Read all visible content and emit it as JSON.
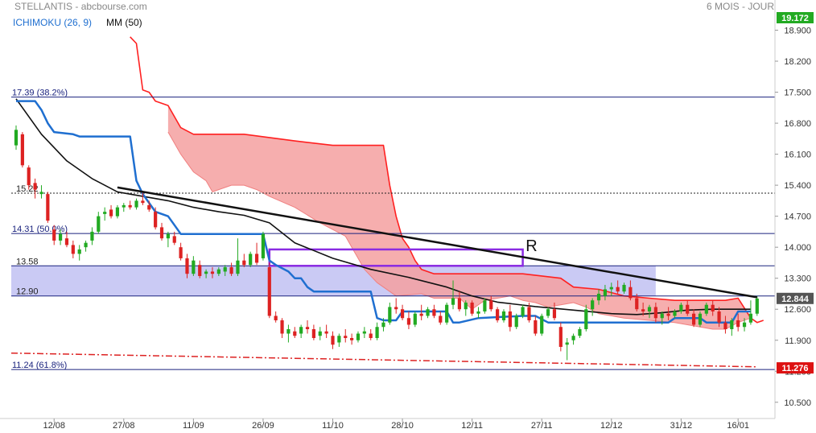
{
  "header": {
    "title": "STELLANTIS - abcbourse.com",
    "period": "6 MOIS - JOUR",
    "indicator1": "ICHIMOKU (26, 9)",
    "indicator2": "MM (50)"
  },
  "colors": {
    "kijun": "#1f6fd0",
    "ma": "#111111",
    "senkou_b": "#ff2020",
    "cloud_bear": "#f4a0a0",
    "cloud_bull": "#c8c0f0",
    "up_candle": "#22aa22",
    "down_candle": "#dd2222",
    "fib_line": "#1a237e",
    "zone_fill": "#b8b8f0",
    "purple_box": "#8a2be2",
    "support_dashdot": "#dd2222",
    "price_tag": "#dd1111",
    "top_tag": "#22aa22",
    "last_tag": "#555555"
  },
  "chart_data": {
    "type": "candlestick",
    "y_axis": {
      "ylim": [
        10.3,
        19.1
      ],
      "ticks": [
        "18.900",
        "18.200",
        "17.500",
        "16.800",
        "16.100",
        "15.400",
        "14.700",
        "14.000",
        "13.300",
        "12.600",
        "11.900",
        "11.200",
        "10.500"
      ],
      "top_tag": "19.172",
      "price_tags": [
        {
          "label": "12.844",
          "value": 12.844,
          "style": "last"
        },
        {
          "label": "11.276",
          "value": 11.276,
          "style": "red"
        }
      ]
    },
    "x_axis": {
      "ticks": [
        {
          "label": "12/08",
          "index": 6
        },
        {
          "label": "27/08",
          "index": 17
        },
        {
          "label": "11/09",
          "index": 28
        },
        {
          "label": "26/09",
          "index": 39
        },
        {
          "label": "11/10",
          "index": 50
        },
        {
          "label": "28/10",
          "index": 61
        },
        {
          "label": "12/11",
          "index": 72
        },
        {
          "label": "27/11",
          "index": 83
        },
        {
          "label": "12/12",
          "index": 94
        },
        {
          "label": "31/12",
          "index": 105
        },
        {
          "label": "16/01",
          "index": 114
        }
      ]
    },
    "fib_levels": [
      {
        "label": "17.39  (38.2%)",
        "value": 17.39
      },
      {
        "label": "14.31  (50.0%)",
        "value": 14.31
      },
      {
        "label": "11.24  (61.8%)",
        "value": 11.24
      }
    ],
    "level_labels": [
      {
        "label": "15.22",
        "value": 15.22,
        "dotted": true
      },
      {
        "label": "13.58",
        "value": 13.58
      },
      {
        "label": "12.90",
        "value": 12.9
      }
    ],
    "zone": {
      "low": 12.9,
      "high": 13.58,
      "x_start": 0,
      "x_end": 101
    },
    "purple_box": {
      "low": 13.58,
      "high": 13.95,
      "x_start": 40,
      "x_end": 80
    },
    "resistance": {
      "label": "R",
      "label_value": 14.0,
      "label_x": 83,
      "x1": 16,
      "y1": 15.35,
      "x2": 117,
      "y2": 12.87
    },
    "support": {
      "x1": 0,
      "y1": 11.61,
      "x2": 117,
      "y2": 11.3
    },
    "candles": [
      [
        16.3,
        16.75,
        16.2,
        16.65
      ],
      [
        16.55,
        16.6,
        15.8,
        15.85
      ],
      [
        15.8,
        15.85,
        15.3,
        15.4
      ],
      [
        15.45,
        15.55,
        15.1,
        15.3
      ],
      [
        15.2,
        15.4,
        15.1,
        15.25
      ],
      [
        15.2,
        15.25,
        14.55,
        14.6
      ],
      [
        14.4,
        14.5,
        14.05,
        14.15
      ],
      [
        14.15,
        14.4,
        14.05,
        14.3
      ],
      [
        14.2,
        14.35,
        14.0,
        14.05
      ],
      [
        14.05,
        14.15,
        13.75,
        13.85
      ],
      [
        13.85,
        14.05,
        13.7,
        13.95
      ],
      [
        14.0,
        14.15,
        13.9,
        14.1
      ],
      [
        14.15,
        14.45,
        14.05,
        14.35
      ],
      [
        14.35,
        14.8,
        14.3,
        14.7
      ],
      [
        14.75,
        14.9,
        14.6,
        14.8
      ],
      [
        14.85,
        14.95,
        14.65,
        14.7
      ],
      [
        14.7,
        14.95,
        14.65,
        14.9
      ],
      [
        14.9,
        15.0,
        14.8,
        14.95
      ],
      [
        14.95,
        15.05,
        14.85,
        14.9
      ],
      [
        14.9,
        15.1,
        14.85,
        15.05
      ],
      [
        15.05,
        15.25,
        14.95,
        15.0
      ],
      [
        14.95,
        15.05,
        14.8,
        14.85
      ],
      [
        14.8,
        14.9,
        14.4,
        14.45
      ],
      [
        14.45,
        14.55,
        14.15,
        14.2
      ],
      [
        14.2,
        14.35,
        14.0,
        14.3
      ],
      [
        14.25,
        14.35,
        14.05,
        14.1
      ],
      [
        14.0,
        14.1,
        13.7,
        13.75
      ],
      [
        13.75,
        13.85,
        13.3,
        13.4
      ],
      [
        13.4,
        13.8,
        13.35,
        13.7
      ],
      [
        13.6,
        13.7,
        13.3,
        13.35
      ],
      [
        13.4,
        13.5,
        13.3,
        13.45
      ],
      [
        13.45,
        13.55,
        13.3,
        13.4
      ],
      [
        13.4,
        13.55,
        13.35,
        13.5
      ],
      [
        13.45,
        13.6,
        13.35,
        13.55
      ],
      [
        13.55,
        13.65,
        13.35,
        13.4
      ],
      [
        13.4,
        14.2,
        13.35,
        13.7
      ],
      [
        13.7,
        13.85,
        13.55,
        13.6
      ],
      [
        13.6,
        13.9,
        13.55,
        13.85
      ],
      [
        13.85,
        14.1,
        13.6,
        13.65
      ],
      [
        13.75,
        14.35,
        13.7,
        14.3
      ],
      [
        13.55,
        13.65,
        12.4,
        12.45
      ],
      [
        12.45,
        12.55,
        12.3,
        12.35
      ],
      [
        12.35,
        12.4,
        11.95,
        12.05
      ],
      [
        12.05,
        12.25,
        11.85,
        12.15
      ],
      [
        12.1,
        12.2,
        11.95,
        12.0
      ],
      [
        12.05,
        12.25,
        11.95,
        12.2
      ],
      [
        12.2,
        12.35,
        12.05,
        12.15
      ],
      [
        12.15,
        12.25,
        11.9,
        11.95
      ],
      [
        12.0,
        12.2,
        11.9,
        12.1
      ],
      [
        12.1,
        12.25,
        11.95,
        12.05
      ],
      [
        12.0,
        12.1,
        11.7,
        11.8
      ],
      [
        11.85,
        12.05,
        11.75,
        12.0
      ],
      [
        12.0,
        12.15,
        11.85,
        11.95
      ],
      [
        11.95,
        12.05,
        11.8,
        11.9
      ],
      [
        11.9,
        12.1,
        11.85,
        12.05
      ],
      [
        12.05,
        12.2,
        11.95,
        12.1
      ],
      [
        12.05,
        12.15,
        11.9,
        11.95
      ],
      [
        11.95,
        12.3,
        11.9,
        12.2
      ],
      [
        12.2,
        12.4,
        12.1,
        12.3
      ],
      [
        12.3,
        12.75,
        12.25,
        12.65
      ],
      [
        12.65,
        12.85,
        12.5,
        12.6
      ],
      [
        12.6,
        12.7,
        12.35,
        12.4
      ],
      [
        12.4,
        12.55,
        12.15,
        12.25
      ],
      [
        12.25,
        12.55,
        12.2,
        12.5
      ],
      [
        12.5,
        12.7,
        12.35,
        12.45
      ],
      [
        12.45,
        12.65,
        12.4,
        12.6
      ],
      [
        12.6,
        12.7,
        12.4,
        12.45
      ],
      [
        12.45,
        12.55,
        12.25,
        12.3
      ],
      [
        12.3,
        12.75,
        12.25,
        12.7
      ],
      [
        12.7,
        13.25,
        12.6,
        12.85
      ],
      [
        12.85,
        13.0,
        12.55,
        12.6
      ],
      [
        12.6,
        12.8,
        12.45,
        12.75
      ],
      [
        12.75,
        12.8,
        12.45,
        12.5
      ],
      [
        12.5,
        12.65,
        12.4,
        12.55
      ],
      [
        12.55,
        12.85,
        12.5,
        12.8
      ],
      [
        12.8,
        12.9,
        12.55,
        12.6
      ],
      [
        12.6,
        12.65,
        12.3,
        12.35
      ],
      [
        12.35,
        12.6,
        12.3,
        12.55
      ],
      [
        12.55,
        12.7,
        12.1,
        12.2
      ],
      [
        12.2,
        12.5,
        12.15,
        12.45
      ],
      [
        12.45,
        12.7,
        12.4,
        12.65
      ],
      [
        12.65,
        12.75,
        12.3,
        12.35
      ],
      [
        12.35,
        12.45,
        12.0,
        12.05
      ],
      [
        12.05,
        12.5,
        12.0,
        12.45
      ],
      [
        12.45,
        12.65,
        12.4,
        12.6
      ],
      [
        12.6,
        12.75,
        12.35,
        12.4
      ],
      [
        12.2,
        12.3,
        11.65,
        11.75
      ],
      [
        11.8,
        11.95,
        11.45,
        11.85
      ],
      [
        11.9,
        12.05,
        11.8,
        12.0
      ],
      [
        12.0,
        12.2,
        11.95,
        12.15
      ],
      [
        12.15,
        12.7,
        12.1,
        12.6
      ],
      [
        12.6,
        12.85,
        12.45,
        12.8
      ],
      [
        12.8,
        13.05,
        12.7,
        12.95
      ],
      [
        12.9,
        13.15,
        12.8,
        13.05
      ],
      [
        13.05,
        13.2,
        12.9,
        13.1
      ],
      [
        13.1,
        13.25,
        12.95,
        13.0
      ],
      [
        13.0,
        13.2,
        12.95,
        13.15
      ],
      [
        13.1,
        13.25,
        12.8,
        12.85
      ],
      [
        12.85,
        12.95,
        12.55,
        12.6
      ],
      [
        12.6,
        12.75,
        12.45,
        12.55
      ],
      [
        12.55,
        12.7,
        12.4,
        12.65
      ],
      [
        12.65,
        12.75,
        12.3,
        12.4
      ],
      [
        12.4,
        12.55,
        12.25,
        12.5
      ],
      [
        12.5,
        12.65,
        12.35,
        12.45
      ],
      [
        12.45,
        12.6,
        12.4,
        12.55
      ],
      [
        12.55,
        12.75,
        12.5,
        12.7
      ],
      [
        12.7,
        12.8,
        12.45,
        12.5
      ],
      [
        12.5,
        12.6,
        12.2,
        12.25
      ],
      [
        12.25,
        12.55,
        12.2,
        12.5
      ],
      [
        12.5,
        12.75,
        12.45,
        12.7
      ],
      [
        12.7,
        12.8,
        12.45,
        12.55
      ],
      [
        12.55,
        12.65,
        12.2,
        12.3
      ],
      [
        12.3,
        12.45,
        12.05,
        12.15
      ],
      [
        12.15,
        12.4,
        12.0,
        12.35
      ],
      [
        12.35,
        12.5,
        12.1,
        12.2
      ],
      [
        12.2,
        12.4,
        12.1,
        12.3
      ],
      [
        12.3,
        12.8,
        12.25,
        12.5
      ],
      [
        12.5,
        12.9,
        12.45,
        12.84
      ]
    ],
    "ma50": [
      [
        0,
        17.35
      ],
      [
        4,
        16.55
      ],
      [
        8,
        15.95
      ],
      [
        12,
        15.55
      ],
      [
        16,
        15.25
      ],
      [
        20,
        15.15
      ],
      [
        24,
        15.05
      ],
      [
        28,
        14.9
      ],
      [
        32,
        14.8
      ],
      [
        36,
        14.72
      ],
      [
        40,
        14.55
      ],
      [
        44,
        14.1
      ],
      [
        50,
        13.75
      ],
      [
        56,
        13.5
      ],
      [
        62,
        13.32
      ],
      [
        68,
        13.1
      ],
      [
        72,
        12.9
      ],
      [
        76,
        12.76
      ],
      [
        82,
        12.66
      ],
      [
        88,
        12.58
      ],
      [
        94,
        12.5
      ],
      [
        98,
        12.48
      ],
      [
        102,
        12.52
      ],
      [
        106,
        12.58
      ],
      [
        110,
        12.6
      ],
      [
        114,
        12.6
      ],
      [
        116,
        12.6
      ]
    ],
    "kijun": [
      [
        0,
        17.3
      ],
      [
        3,
        17.3
      ],
      [
        4,
        17.1
      ],
      [
        5,
        16.8
      ],
      [
        6,
        16.6
      ],
      [
        9,
        16.55
      ],
      [
        10,
        16.5
      ],
      [
        18,
        16.5
      ],
      [
        19,
        15.5
      ],
      [
        20,
        15.2
      ],
      [
        21,
        15.0
      ],
      [
        22,
        14.8
      ],
      [
        24,
        14.7
      ],
      [
        25,
        14.5
      ],
      [
        26,
        14.3
      ],
      [
        38,
        14.3
      ],
      [
        39,
        14.3
      ],
      [
        40,
        13.7
      ],
      [
        41,
        13.6
      ],
      [
        43,
        13.45
      ],
      [
        44,
        13.3
      ],
      [
        45,
        13.3
      ],
      [
        46,
        13.1
      ],
      [
        47,
        13.0
      ],
      [
        56,
        13.0
      ],
      [
        57,
        12.4
      ],
      [
        58,
        12.35
      ],
      [
        60,
        12.35
      ],
      [
        61,
        12.55
      ],
      [
        62,
        12.55
      ],
      [
        68,
        12.55
      ],
      [
        69,
        12.3
      ],
      [
        70,
        12.3
      ],
      [
        73,
        12.4
      ],
      [
        80,
        12.45
      ],
      [
        82,
        12.45
      ],
      [
        84,
        12.3
      ],
      [
        96,
        12.3
      ],
      [
        102,
        12.3
      ],
      [
        103,
        12.3
      ],
      [
        104,
        12.4
      ],
      [
        108,
        12.4
      ],
      [
        109,
        12.3
      ],
      [
        113,
        12.3
      ],
      [
        114,
        12.55
      ],
      [
        116,
        12.55
      ]
    ],
    "senkou_a": [
      [
        24,
        16.6
      ],
      [
        26,
        16.1
      ],
      [
        28,
        15.7
      ],
      [
        30,
        15.5
      ],
      [
        31,
        15.25
      ],
      [
        32,
        15.3
      ],
      [
        34,
        15.4
      ],
      [
        36,
        15.4
      ],
      [
        38,
        15.3
      ],
      [
        40,
        15.15
      ],
      [
        44,
        14.9
      ],
      [
        48,
        14.55
      ],
      [
        52,
        14.25
      ],
      [
        55,
        13.5
      ],
      [
        57,
        13.2
      ],
      [
        60,
        12.9
      ],
      [
        64,
        12.95
      ],
      [
        66,
        12.85
      ],
      [
        70,
        12.85
      ],
      [
        72,
        12.6
      ],
      [
        74,
        12.8
      ],
      [
        78,
        12.9
      ],
      [
        80,
        12.8
      ],
      [
        82,
        12.75
      ],
      [
        84,
        12.65
      ],
      [
        86,
        12.7
      ],
      [
        88,
        12.75
      ],
      [
        90,
        12.65
      ],
      [
        92,
        12.5
      ],
      [
        96,
        12.4
      ],
      [
        100,
        12.35
      ],
      [
        104,
        12.3
      ],
      [
        108,
        12.2
      ],
      [
        110,
        12.15
      ],
      [
        112,
        12.15
      ],
      [
        114,
        12.3
      ],
      [
        116,
        12.4
      ]
    ],
    "senkou_b": [
      [
        18,
        18.75
      ],
      [
        19,
        18.6
      ],
      [
        20,
        17.55
      ],
      [
        21,
        17.5
      ],
      [
        22,
        17.3
      ],
      [
        24,
        17.2
      ],
      [
        26,
        16.7
      ],
      [
        28,
        16.55
      ],
      [
        36,
        16.55
      ],
      [
        44,
        16.4
      ],
      [
        50,
        16.3
      ],
      [
        58,
        16.3
      ],
      [
        59,
        15.4
      ],
      [
        60,
        14.7
      ],
      [
        61,
        14.2
      ],
      [
        62,
        14.0
      ],
      [
        63,
        13.7
      ],
      [
        64,
        13.5
      ],
      [
        66,
        13.4
      ],
      [
        80,
        13.4
      ],
      [
        86,
        13.3
      ],
      [
        88,
        13.1
      ],
      [
        92,
        13.05
      ],
      [
        96,
        12.9
      ],
      [
        100,
        12.85
      ],
      [
        104,
        12.8
      ],
      [
        108,
        12.8
      ],
      [
        112,
        12.8
      ],
      [
        114,
        12.85
      ],
      [
        116,
        12.4
      ],
      [
        117,
        12.3
      ],
      [
        118,
        12.35
      ]
    ]
  }
}
